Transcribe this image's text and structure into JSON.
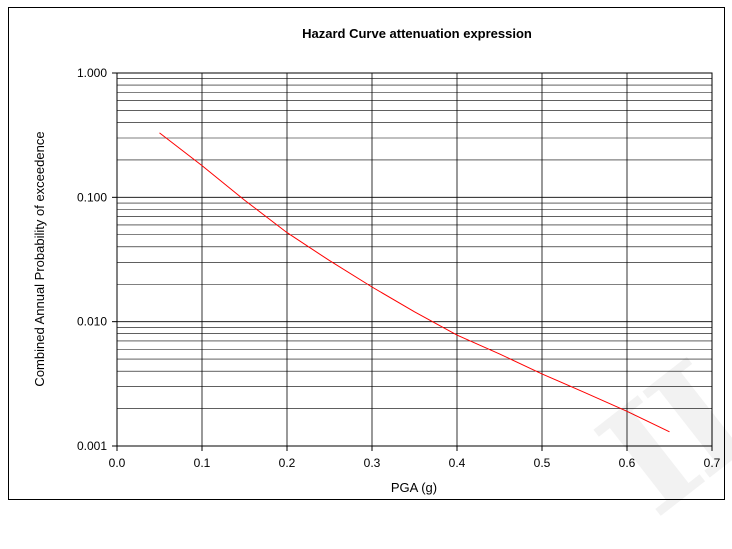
{
  "chart_data": {
    "type": "line",
    "title": "Hazard Curve attenuation expression",
    "xlabel": "PGA (g)",
    "ylabel": "Combined Annual Probability of exceedence",
    "xlim": [
      0.0,
      0.7
    ],
    "ylim": [
      0.001,
      1.0
    ],
    "yscale": "log",
    "grid": true,
    "x_ticks": [
      "0.0",
      "0.1",
      "0.2",
      "0.3",
      "0.4",
      "0.5",
      "0.6",
      "0.7"
    ],
    "y_ticks": [
      "0.001",
      "0.010",
      "0.100",
      "1.000"
    ],
    "series": [
      {
        "color": "#ff0000",
        "x": [
          0.05,
          0.1,
          0.15,
          0.2,
          0.25,
          0.3,
          0.35,
          0.4,
          0.45,
          0.5,
          0.55,
          0.6,
          0.65
        ],
        "y": [
          0.33,
          0.18,
          0.095,
          0.052,
          0.031,
          0.019,
          0.012,
          0.0078,
          0.0055,
          0.0038,
          0.0027,
          0.0019,
          0.0013
        ]
      }
    ]
  },
  "colors": {
    "line": "#ff0000",
    "grid": "#000000",
    "background": "#ffffff"
  }
}
